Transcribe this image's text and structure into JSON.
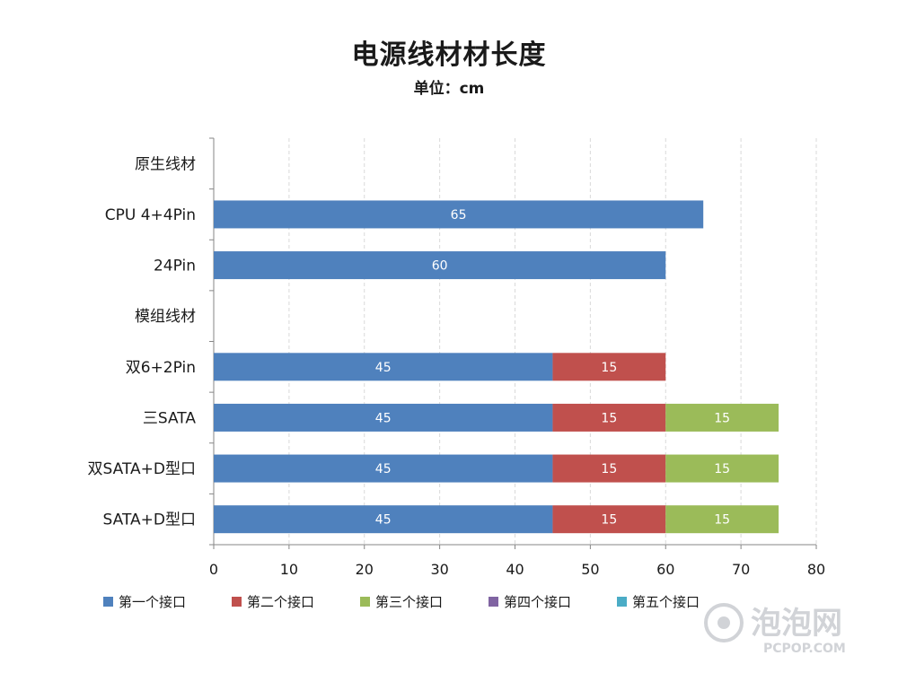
{
  "chart_data": {
    "type": "bar",
    "orientation": "horizontal",
    "stacked": true,
    "title": "电源线材材长度",
    "subtitle": "单位：cm",
    "categories": [
      "原生线材",
      "CPU 4+4Pin",
      "24Pin",
      "模组线材",
      "双6+2Pin",
      "三SATA",
      "双SATA+D型口",
      "SATA+D型口"
    ],
    "series": [
      {
        "name": "第一个接口",
        "color": "#4f81bd",
        "values": [
          null,
          65,
          60,
          null,
          45,
          45,
          45,
          45
        ]
      },
      {
        "name": "第二个接口",
        "color": "#c0504d",
        "values": [
          null,
          null,
          null,
          null,
          15,
          15,
          15,
          15
        ]
      },
      {
        "name": "第三个接口",
        "color": "#9bbb59",
        "values": [
          null,
          null,
          null,
          null,
          null,
          15,
          15,
          15
        ]
      },
      {
        "name": "第四个接口",
        "color": "#8064a2",
        "values": [
          null,
          null,
          null,
          null,
          null,
          null,
          null,
          null
        ]
      },
      {
        "name": "第五个接口",
        "color": "#4bacc6",
        "values": [
          null,
          null,
          null,
          null,
          null,
          null,
          null,
          null
        ]
      }
    ],
    "xlim": [
      0,
      80
    ],
    "xticks": [
      0,
      10,
      20,
      30,
      40,
      50,
      60,
      70,
      80
    ],
    "grid": "vertical dashed",
    "legend_position": "bottom"
  },
  "watermark": {
    "main": "泡泡网",
    "sub": "PCPOP.COM"
  }
}
